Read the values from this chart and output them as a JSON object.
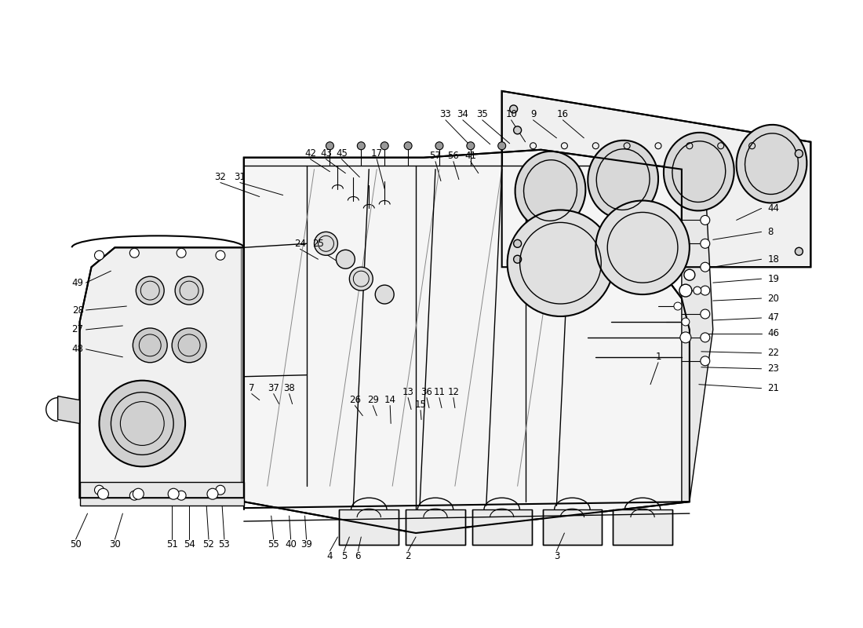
{
  "background_color": "#ffffff",
  "line_color": "#000000",
  "watermark_color_top": "#c8c8c8",
  "watermark_color_bot": "#c8c8c8",
  "fig_width": 11.0,
  "fig_height": 8.0,
  "dpi": 100,
  "labels": {
    "top_row": [
      "33",
      "34",
      "35",
      "10",
      "9",
      "16"
    ],
    "right_col": [
      "44",
      "8",
      "18",
      "19",
      "20",
      "47",
      "46",
      "22",
      "23",
      "21"
    ],
    "left_col": [
      "49",
      "28",
      "27",
      "48"
    ],
    "bot_row_left": [
      "50",
      "30",
      "51",
      "54",
      "52",
      "53",
      "55",
      "40",
      "39"
    ],
    "bot_items": [
      "4",
      "5",
      "6"
    ],
    "mid_labels": [
      "32",
      "31",
      "42",
      "43",
      "45",
      "17",
      "57",
      "56",
      "41",
      "24",
      "25",
      "7",
      "37",
      "38",
      "26",
      "29",
      "14",
      "15",
      "13",
      "36",
      "11",
      "12",
      "1",
      "2",
      "3"
    ]
  }
}
